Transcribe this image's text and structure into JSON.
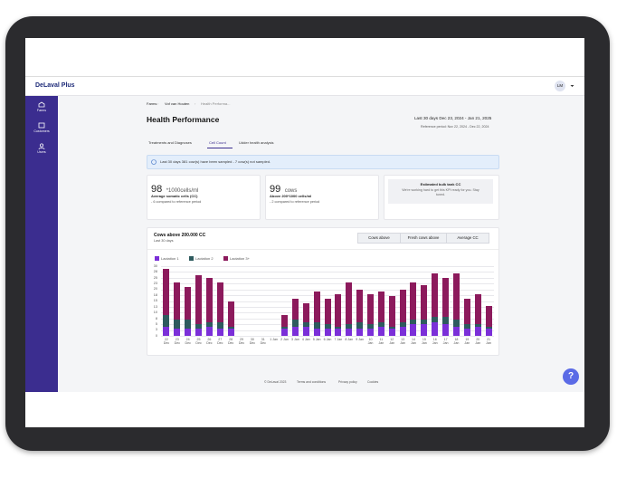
{
  "header": {
    "logo": "DeLaval Plus",
    "avatar": "LM"
  },
  "sidebar": [
    "Farms",
    "Customers",
    "Users"
  ],
  "breadcrumb": [
    "Farms",
    "Vof van Houten",
    "Health Performa..."
  ],
  "title": "Health Performance",
  "period": {
    "label": "Last 30 days Dec 23, 2024 - Jan 21, 2025",
    "reference": "Reference period: Nov 22, 2024 - Dec 22, 2024"
  },
  "tabs": [
    "Treatments and Diagnoses",
    "Cell Count",
    "Udder health analysis"
  ],
  "info": "Last 30 days 381 cow(s) have been sampled - 7 cow(s) not sampled.",
  "cards": [
    {
      "value": 98,
      "unit": "*1000cells/ml",
      "label": "Average somatic cells (CC)",
      "delta": "- 6 compared to reference period"
    },
    {
      "value": 99,
      "unit": "cows",
      "label": "Above 200*1000 cells/ml",
      "delta": "- 2 compared to reference period"
    },
    {
      "title": "Estimated bulk tank CC",
      "text": "We're working hard to get this KPI ready for you. Stay tuned."
    }
  ],
  "chart_buttons": [
    "Cows above",
    "Fresh cows above",
    "Average CC"
  ],
  "chart_data": {
    "type": "bar",
    "stacked": true,
    "title": "Cows above 200.000 CC",
    "subtitle": "Last 30 days",
    "categories": [
      "22 Dec",
      "23 Dec",
      "24 Dec",
      "25 Dec",
      "26 Dec",
      "27 Dec",
      "28 Dec",
      "29 Dec",
      "30 Dec",
      "31 Dec",
      "1 Jan",
      "2 Jan",
      "3 Jan",
      "4 Jan",
      "5 Jan",
      "6 Jan",
      "7 Jan",
      "8 Jan",
      "9 Jan",
      "10 Jan",
      "11 Jan",
      "12 Jan",
      "13 Jan",
      "14 Jan",
      "15 Jan",
      "16 Jan",
      "17 Jan",
      "18 Jan",
      "19 Jan",
      "20 Jan",
      "21 Jan"
    ],
    "series": [
      {
        "name": "Lactation 1",
        "color": "#7b2fd8",
        "values": [
          4,
          3,
          3,
          3,
          4,
          3,
          3,
          0,
          0,
          0,
          0,
          3,
          4,
          4,
          3,
          3,
          3,
          3,
          3,
          3,
          4,
          3,
          4,
          5,
          5,
          6,
          5,
          4,
          3,
          4,
          3
        ]
      },
      {
        "name": "Lactation 2",
        "color": "#2e5b5e",
        "values": [
          5,
          4,
          4,
          2,
          2,
          3,
          1,
          0,
          0,
          0,
          0,
          1,
          3,
          2,
          3,
          2,
          1,
          2,
          3,
          2,
          2,
          1,
          2,
          2,
          2,
          2,
          3,
          3,
          2,
          1,
          1
        ]
      },
      {
        "name": "Lactation 3+",
        "color": "#8c1a5c",
        "values": [
          20,
          16,
          14,
          21,
          19,
          17,
          11,
          0,
          0,
          0,
          0,
          5,
          9,
          8,
          13,
          11,
          14,
          18,
          14,
          13,
          13,
          13,
          14,
          16,
          15,
          19,
          17,
          20,
          11,
          13,
          9
        ]
      }
    ],
    "ylim": [
      0,
      30
    ],
    "yticks": [
      0,
      {
        "value": 2.5,
        "label": "3"
      },
      5,
      {
        "value": 7.5,
        "label": "8"
      },
      10,
      {
        "value": 12.5,
        "label": "13"
      },
      15,
      {
        "value": 17.5,
        "label": "18"
      },
      20,
      {
        "value": 22.5,
        "label": "23"
      },
      25,
      {
        "value": 27.5,
        "label": "28"
      },
      30
    ],
    "grid": true
  },
  "footer": [
    "© DeLaval 2023",
    "Terms and conditions",
    "Privacy policy",
    "Cookies"
  ],
  "help": "?"
}
